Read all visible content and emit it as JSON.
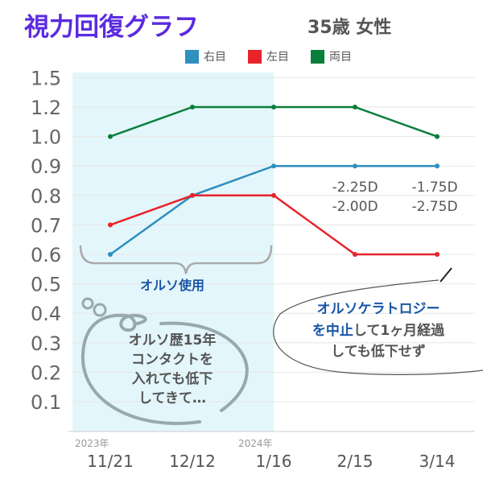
{
  "title": "視力回復グラフ",
  "subtitle": "35歳 女性",
  "chart_data": {
    "type": "line",
    "categories": [
      "11/21",
      "12/12",
      "1/16",
      "2/15",
      "3/14"
    ],
    "year_labels": [
      {
        "at": "11/21",
        "text": "2023年"
      },
      {
        "at": "1/16",
        "text": "2024年"
      }
    ],
    "y_ticks": [
      "0.1",
      "0.2",
      "0.3",
      "0.4",
      "0.5",
      "0.6",
      "0.7",
      "0.8",
      "0.9",
      "1.0",
      "1.2",
      "1.5"
    ],
    "grid": true,
    "legend_position": "top",
    "series": [
      {
        "name": "右目",
        "color": "#2f8fbf",
        "values": [
          0.6,
          0.8,
          0.9,
          0.9,
          0.9
        ]
      },
      {
        "name": "左目",
        "color": "#e8232a",
        "values": [
          0.7,
          0.8,
          0.8,
          0.6,
          0.6
        ]
      },
      {
        "name": "両目",
        "color": "#0a7f3b",
        "values": [
          1.0,
          1.2,
          1.2,
          1.2,
          1.0
        ]
      }
    ],
    "shaded_period": {
      "from": "11/21",
      "to": "1/16",
      "label": "オルソ使用",
      "color": "#e3f6fb"
    },
    "annotations": {
      "diopters": [
        {
          "at": "2/15",
          "lines": [
            "-2.25D",
            "-2.00D"
          ]
        },
        {
          "at": "3/14",
          "lines": [
            "-1.75D",
            "-2.75D"
          ]
        }
      ],
      "bubble_left": [
        "オルソ歴15年",
        "コンタクトを",
        "入れても低下",
        "してきて…"
      ],
      "bubble_right_line1": "オルソケラトロジー",
      "bubble_right_line2a": "を中止",
      "bubble_right_line2b": "して1ヶ月経過",
      "bubble_right_line3": "しても低下せず"
    }
  }
}
